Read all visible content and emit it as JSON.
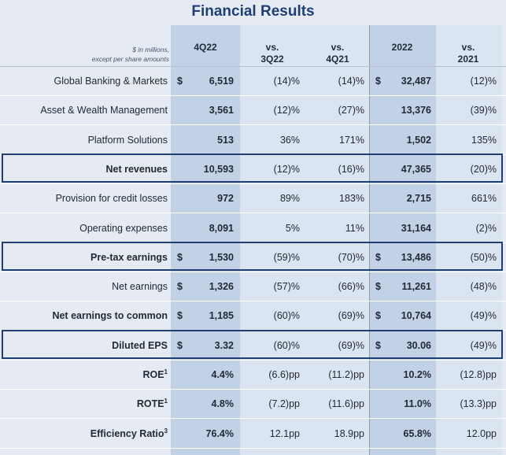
{
  "title": "Financial Results",
  "header": {
    "units_line1": "$ in millions,",
    "units_line2": "except per share amounts",
    "columns": [
      {
        "line1": "",
        "line2": "4Q22"
      },
      {
        "line1": "vs.",
        "line2": "3Q22"
      },
      {
        "line1": "vs.",
        "line2": "4Q21"
      },
      {
        "line1": "",
        "line2": "2022"
      },
      {
        "line1": "vs.",
        "line2": "2021"
      }
    ]
  },
  "rows": [
    {
      "label": "Global Banking & Markets",
      "d1": "$",
      "v1": "6,519",
      "p1": "(14)%",
      "p2": "(14)%",
      "d2": "$",
      "v2": "32,487",
      "p3": "(12)%"
    },
    {
      "label": "Asset & Wealth Management",
      "d1": "",
      "v1": "3,561",
      "p1": "(12)%",
      "p2": "(27)%",
      "d2": "",
      "v2": "13,376",
      "p3": "(39)%"
    },
    {
      "label": "Platform Solutions",
      "d1": "",
      "v1": "513",
      "p1": "36%",
      "p2": "171%",
      "d2": "",
      "v2": "1,502",
      "p3": "135%"
    },
    {
      "label": "Net revenues",
      "d1": "",
      "v1": "10,593",
      "p1": "(12)%",
      "p2": "(16)%",
      "d2": "",
      "v2": "47,365",
      "p3": "(20)%"
    },
    {
      "label": "Provision for credit losses",
      "d1": "",
      "v1": "972",
      "p1": "89%",
      "p2": "183%",
      "d2": "",
      "v2": "2,715",
      "p3": "661%"
    },
    {
      "label": "Operating expenses",
      "d1": "",
      "v1": "8,091",
      "p1": "5%",
      "p2": "11%",
      "d2": "",
      "v2": "31,164",
      "p3": "(2)%"
    },
    {
      "label": "Pre-tax earnings",
      "d1": "$",
      "v1": "1,530",
      "p1": "(59)%",
      "p2": "(70)%",
      "d2": "$",
      "v2": "13,486",
      "p3": "(50)%"
    },
    {
      "label": "Net earnings",
      "d1": "$",
      "v1": "1,326",
      "p1": "(57)%",
      "p2": "(66)%",
      "d2": "$",
      "v2": "11,261",
      "p3": "(48)%"
    },
    {
      "label": "Net earnings to common",
      "d1": "$",
      "v1": "1,185",
      "p1": "(60)%",
      "p2": "(69)%",
      "d2": "$",
      "v2": "10,764",
      "p3": "(49)%"
    },
    {
      "label": "Diluted EPS",
      "d1": "$",
      "v1": "3.32",
      "p1": "(60)%",
      "p2": "(69)%",
      "d2": "$",
      "v2": "30.06",
      "p3": "(49)%"
    },
    {
      "label": "ROE",
      "sup": "1",
      "d1": "",
      "v1": "4.4%",
      "p1": "(6.6)pp",
      "p2": "(11.2)pp",
      "d2": "",
      "v2": "10.2%",
      "p3": "(12.8)pp"
    },
    {
      "label": "ROTE",
      "sup": "1",
      "d1": "",
      "v1": "4.8%",
      "p1": "(7.2)pp",
      "p2": "(11.6)pp",
      "d2": "",
      "v2": "11.0%",
      "p3": "(13.3)pp"
    },
    {
      "label": "Efficiency Ratio",
      "sup": "3",
      "d1": "",
      "v1": "76.4%",
      "p1": "12.1pp",
      "p2": "18.9pp",
      "d2": "",
      "v2": "65.8%",
      "p3": "12.0pp"
    }
  ]
}
